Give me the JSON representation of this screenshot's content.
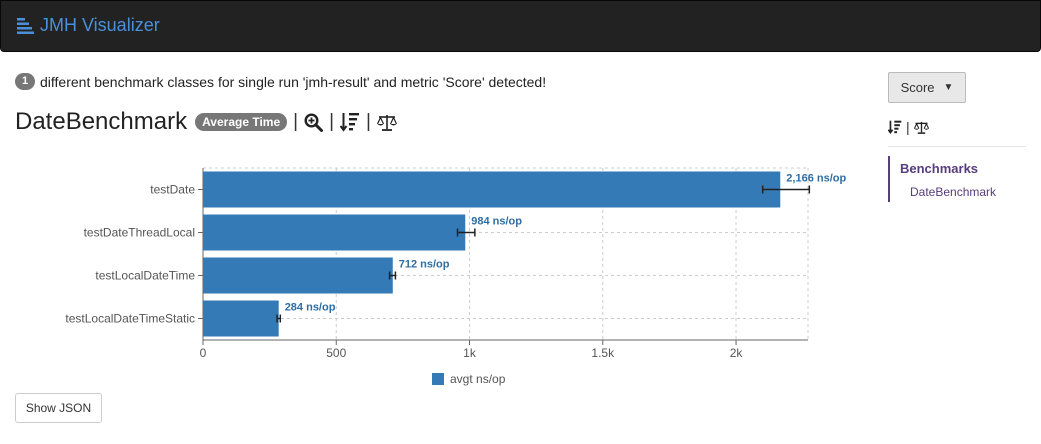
{
  "navbar": {
    "brand": "JMH Visualizer"
  },
  "intro": {
    "count": "1",
    "text": "different benchmark classes for single run 'jmh-result' and metric 'Score' detected!"
  },
  "benchmark": {
    "title": "DateBenchmark",
    "mode": "Average Time"
  },
  "icons": {
    "zoom": "zoom-in-icon",
    "sort": "sort-descending-icon",
    "compare": "balance-scale-icon",
    "brand": "list-icon"
  },
  "separator": "|",
  "sidebar": {
    "metric": "Score",
    "heading": "Benchmarks",
    "items": [
      "DateBenchmark"
    ]
  },
  "buttons": {
    "show_json": "Show JSON"
  },
  "colors": {
    "bar": "#337ab7",
    "label": "#2e6da4",
    "nav_accent": "#563d7c"
  },
  "chart_data": {
    "type": "bar",
    "orientation": "horizontal",
    "categories": [
      "testDate",
      "testDateThreadLocal",
      "testLocalDateTime",
      "testLocalDateTimeStatic"
    ],
    "series": [
      {
        "name": "avgt ns/op",
        "values": [
          2166,
          984,
          712,
          284
        ]
      }
    ],
    "error_bars": [
      [
        2100,
        2275
      ],
      [
        955,
        1020
      ],
      [
        700,
        722
      ],
      [
        278,
        290
      ]
    ],
    "data_labels": [
      "2,166 ns/op",
      "984 ns/op",
      "712 ns/op",
      "284 ns/op"
    ],
    "xticks": [
      0,
      500,
      1000,
      1500,
      2000
    ],
    "xtick_labels": [
      "0",
      "500",
      "1k",
      "1.5k",
      "2k"
    ],
    "xlim": [
      0,
      2270
    ],
    "grid": true,
    "legend_position": "bottom"
  }
}
